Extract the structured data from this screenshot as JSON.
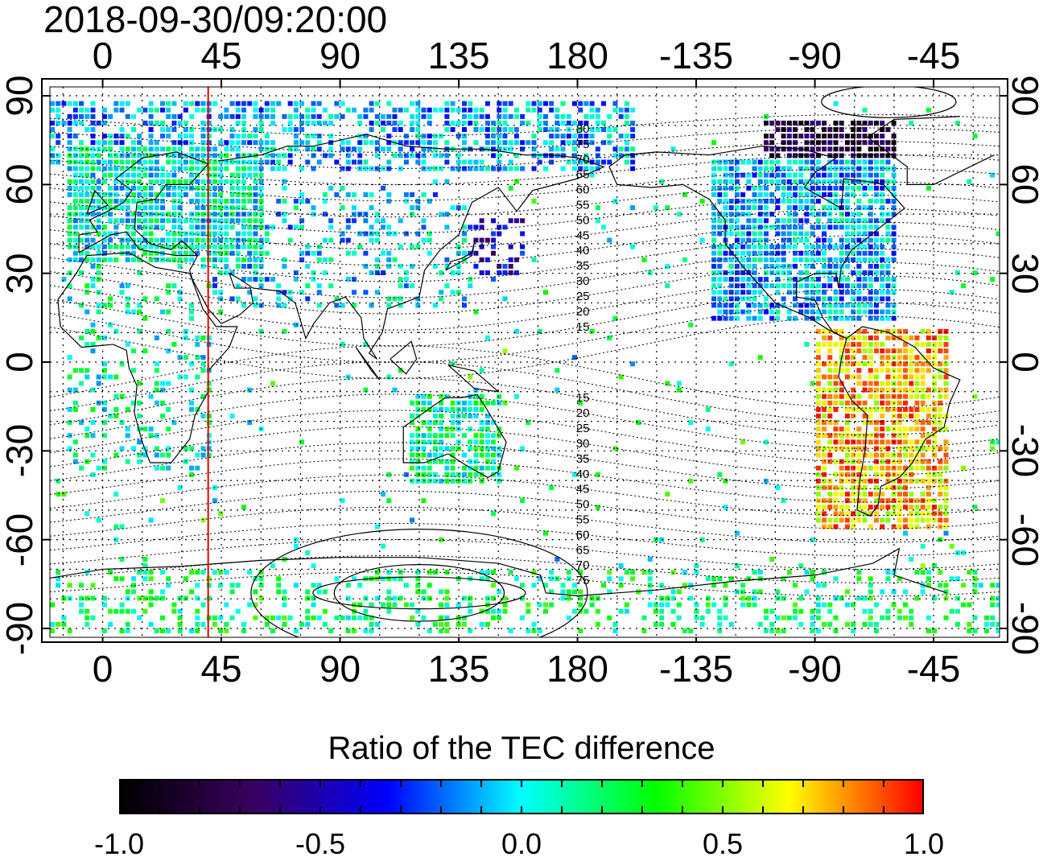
{
  "title": "2018-09-30/09:20:00",
  "map": {
    "lon_ticks": [
      "0",
      "45",
      "90",
      "135",
      "180",
      "-135",
      "-90",
      "-45"
    ],
    "lat_ticks": [
      "90",
      "60",
      "30",
      "0",
      "-30",
      "-60",
      "-90"
    ],
    "lon_range": [
      -20,
      340
    ],
    "lat_range": [
      -93,
      93
    ],
    "grid": true,
    "marker_line_lon": 40,
    "marker_line_color": "#e00000",
    "contour_labels_north": [
      "80",
      "75",
      "70",
      "65",
      "60",
      "55",
      "50",
      "45",
      "40",
      "35",
      "30",
      "25",
      "20",
      "15"
    ],
    "contour_labels_south": [
      "15",
      "20",
      "25",
      "30",
      "35",
      "40",
      "45",
      "50",
      "55",
      "60",
      "65",
      "70",
      "75"
    ]
  },
  "colorbar": {
    "title": "Ratio of the TEC difference",
    "ticks": [
      "-1.0",
      "-0.5",
      "0.0",
      "0.5",
      "1.0"
    ],
    "range": [
      -1.0,
      1.0
    ],
    "colors": [
      "#000000",
      "#3a0060",
      "#0000ff",
      "#00ffff",
      "#00ff00",
      "#ffff00",
      "#ff0000"
    ]
  }
}
